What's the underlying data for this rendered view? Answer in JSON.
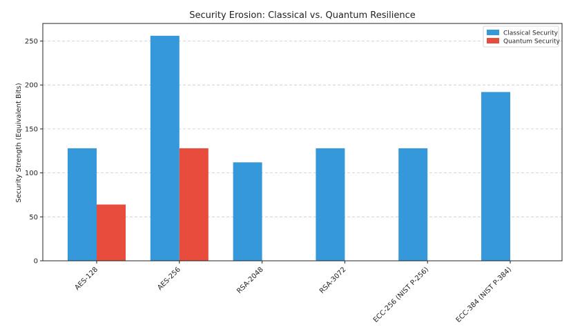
{
  "chart_data": {
    "type": "bar",
    "title": "Security Erosion: Classical vs. Quantum Resilience",
    "xlabel": "",
    "ylabel": "Security Strength (Equivalent Bits)",
    "categories": [
      "AES-128",
      "AES-256",
      "RSA-2048",
      "RSA-3072",
      "ECC-256 (NIST P-256)",
      "ECC-384 (NIST P-384)"
    ],
    "series": [
      {
        "name": "Classical Security",
        "color": "#3498db",
        "values": [
          128,
          256,
          112,
          128,
          128,
          192
        ]
      },
      {
        "name": "Quantum Security",
        "color": "#e74c3c",
        "values": [
          64,
          128,
          0,
          0,
          0,
          0
        ]
      }
    ],
    "ylim": [
      0,
      270
    ],
    "yticks": [
      0,
      50,
      100,
      150,
      200,
      250
    ],
    "grid": "y",
    "legend_position": "top-right"
  }
}
